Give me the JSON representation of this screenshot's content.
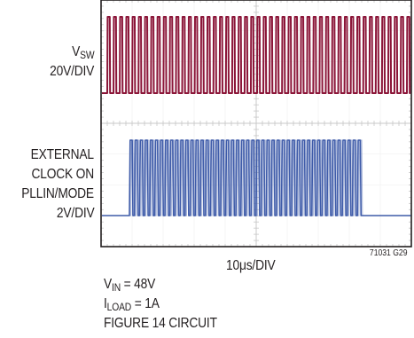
{
  "chart_data": {
    "type": "line",
    "traces": [
      {
        "name_main": "V",
        "name_sub": "SW",
        "scale": "20V/DIV",
        "color": "#8b1538",
        "pulse_count": 49
      },
      {
        "label_lines": [
          "EXTERNAL",
          "CLOCK ON",
          "PLLIN/MODE",
          "2V/DIV"
        ],
        "color": "#3e5ba9",
        "pulse_count": 46
      }
    ],
    "xlabel": "10μs/DIV",
    "grid": true,
    "divisions": {
      "x": 10,
      "y": 8
    },
    "figure_code": "71031 G29"
  },
  "conditions": {
    "vin": {
      "main": "V",
      "sub": "IN",
      "value": " = 48V"
    },
    "iload": {
      "main": "I",
      "sub": "LOAD",
      "value": " = 1A"
    },
    "circuit": "FIGURE 14 CIRCUIT"
  }
}
